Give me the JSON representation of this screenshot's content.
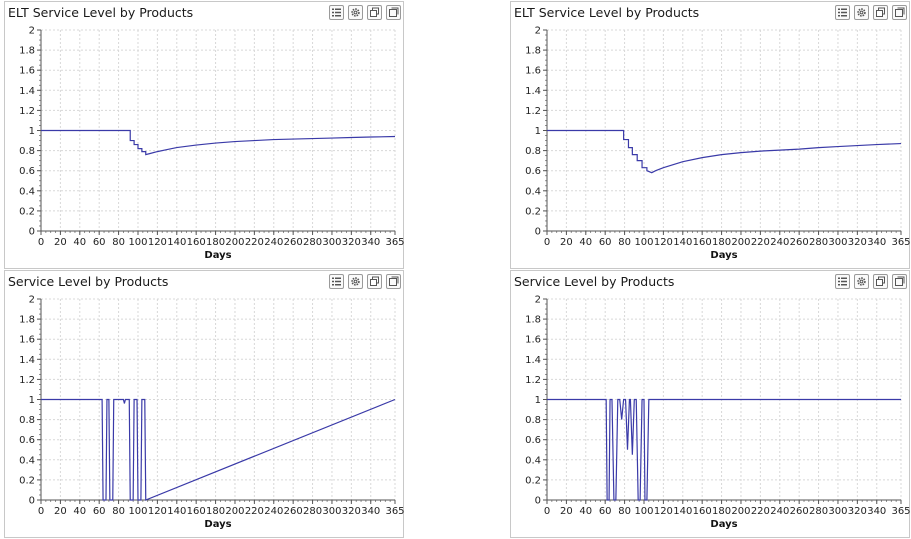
{
  "toolbar_icons": [
    "legend-list-icon",
    "settings-gear-icon",
    "copy-icon",
    "maximize-icon"
  ],
  "chart_data": [
    {
      "type": "line",
      "title": "ELT Service Level by Products",
      "xlabel": "Days",
      "ylabel": "",
      "xlim": [
        0,
        365
      ],
      "ylim": [
        0,
        2
      ],
      "xticks": [
        0,
        20,
        40,
        60,
        80,
        100,
        120,
        140,
        160,
        180,
        200,
        220,
        240,
        260,
        280,
        300,
        320,
        340,
        365
      ],
      "yticks": [
        "0",
        "0.2",
        "0.4",
        "0.6",
        "0.8",
        "1",
        "1.2",
        "1.4",
        "1.6",
        "1.8",
        "2"
      ],
      "grid": true,
      "color": "#3a3aa8",
      "series": [
        {
          "x": [
            0,
            92,
            92,
            96,
            96,
            100,
            100,
            104,
            104,
            108,
            108,
            112,
            120,
            130,
            140,
            160,
            180,
            200,
            220,
            240,
            260,
            280,
            300,
            320,
            340,
            365
          ],
          "y": [
            1,
            1,
            0.9,
            0.9,
            0.86,
            0.86,
            0.82,
            0.82,
            0.79,
            0.79,
            0.76,
            0.77,
            0.79,
            0.81,
            0.83,
            0.855,
            0.875,
            0.89,
            0.9,
            0.91,
            0.915,
            0.92,
            0.925,
            0.93,
            0.935,
            0.94
          ]
        }
      ]
    },
    {
      "type": "line",
      "title": "ELT Service Level by Products",
      "xlabel": "Days",
      "ylabel": "",
      "xlim": [
        0,
        365
      ],
      "ylim": [
        0,
        2
      ],
      "xticks": [
        0,
        20,
        40,
        60,
        80,
        100,
        120,
        140,
        160,
        180,
        200,
        220,
        240,
        260,
        280,
        300,
        320,
        340,
        365
      ],
      "yticks": [
        "0",
        "0.2",
        "0.4",
        "0.6",
        "0.8",
        "1",
        "1.2",
        "1.4",
        "1.6",
        "1.8",
        "2"
      ],
      "grid": true,
      "color": "#3a3aa8",
      "series": [
        {
          "x": [
            0,
            79,
            79,
            84,
            84,
            88,
            88,
            93,
            93,
            98,
            98,
            103,
            103,
            108,
            112,
            120,
            130,
            140,
            160,
            180,
            200,
            220,
            240,
            260,
            280,
            300,
            320,
            340,
            365
          ],
          "y": [
            1,
            1,
            0.91,
            0.91,
            0.83,
            0.83,
            0.76,
            0.76,
            0.7,
            0.7,
            0.63,
            0.63,
            0.6,
            0.58,
            0.6,
            0.63,
            0.66,
            0.69,
            0.73,
            0.76,
            0.78,
            0.795,
            0.805,
            0.815,
            0.83,
            0.84,
            0.85,
            0.86,
            0.87
          ]
        }
      ]
    },
    {
      "type": "line",
      "title": "Service Level by Products",
      "xlabel": "Days",
      "ylabel": "",
      "xlim": [
        0,
        365
      ],
      "ylim": [
        0,
        2
      ],
      "xticks": [
        0,
        20,
        40,
        60,
        80,
        100,
        120,
        140,
        160,
        180,
        200,
        220,
        240,
        260,
        280,
        300,
        320,
        340,
        365
      ],
      "yticks": [
        "0",
        "0.2",
        "0.4",
        "0.6",
        "0.8",
        "1",
        "1.2",
        "1.4",
        "1.6",
        "1.8",
        "2"
      ],
      "grid": true,
      "color": "#3a3aa8",
      "series": [
        {
          "x": [
            0,
            63,
            64,
            67,
            68,
            70,
            71,
            74,
            75,
            85,
            86,
            87,
            91,
            92,
            95,
            96,
            99,
            100,
            103,
            104,
            107,
            108,
            365
          ],
          "y": [
            1,
            1,
            0,
            0,
            1,
            1,
            0,
            0,
            1,
            1,
            0.96,
            1,
            1,
            0,
            0,
            1,
            1,
            0,
            0,
            1,
            1,
            0,
            1
          ]
        }
      ]
    },
    {
      "type": "line",
      "title": "Service Level by Products",
      "xlabel": "Days",
      "ylabel": "",
      "xlim": [
        0,
        365
      ],
      "ylim": [
        0,
        2
      ],
      "xticks": [
        0,
        20,
        40,
        60,
        80,
        100,
        120,
        140,
        160,
        180,
        200,
        220,
        240,
        260,
        280,
        300,
        320,
        340,
        365
      ],
      "yticks": [
        "0",
        "0.2",
        "0.4",
        "0.6",
        "0.8",
        "1",
        "1.2",
        "1.4",
        "1.6",
        "1.8",
        "2"
      ],
      "grid": true,
      "color": "#3a3aa8",
      "series": [
        {
          "x": [
            0,
            61,
            62,
            64,
            65,
            67,
            69,
            71,
            73,
            75,
            77,
            79,
            81,
            83,
            85,
            86,
            88,
            90,
            92,
            94,
            96,
            98,
            100,
            101,
            103,
            105,
            107,
            365
          ],
          "y": [
            1,
            1,
            0,
            0,
            1,
            1,
            0,
            0,
            1,
            1,
            0.8,
            1,
            1,
            0.5,
            1,
            1,
            0.45,
            1,
            1,
            0,
            0,
            1,
            1,
            0,
            0,
            1,
            1,
            1
          ]
        }
      ]
    }
  ]
}
